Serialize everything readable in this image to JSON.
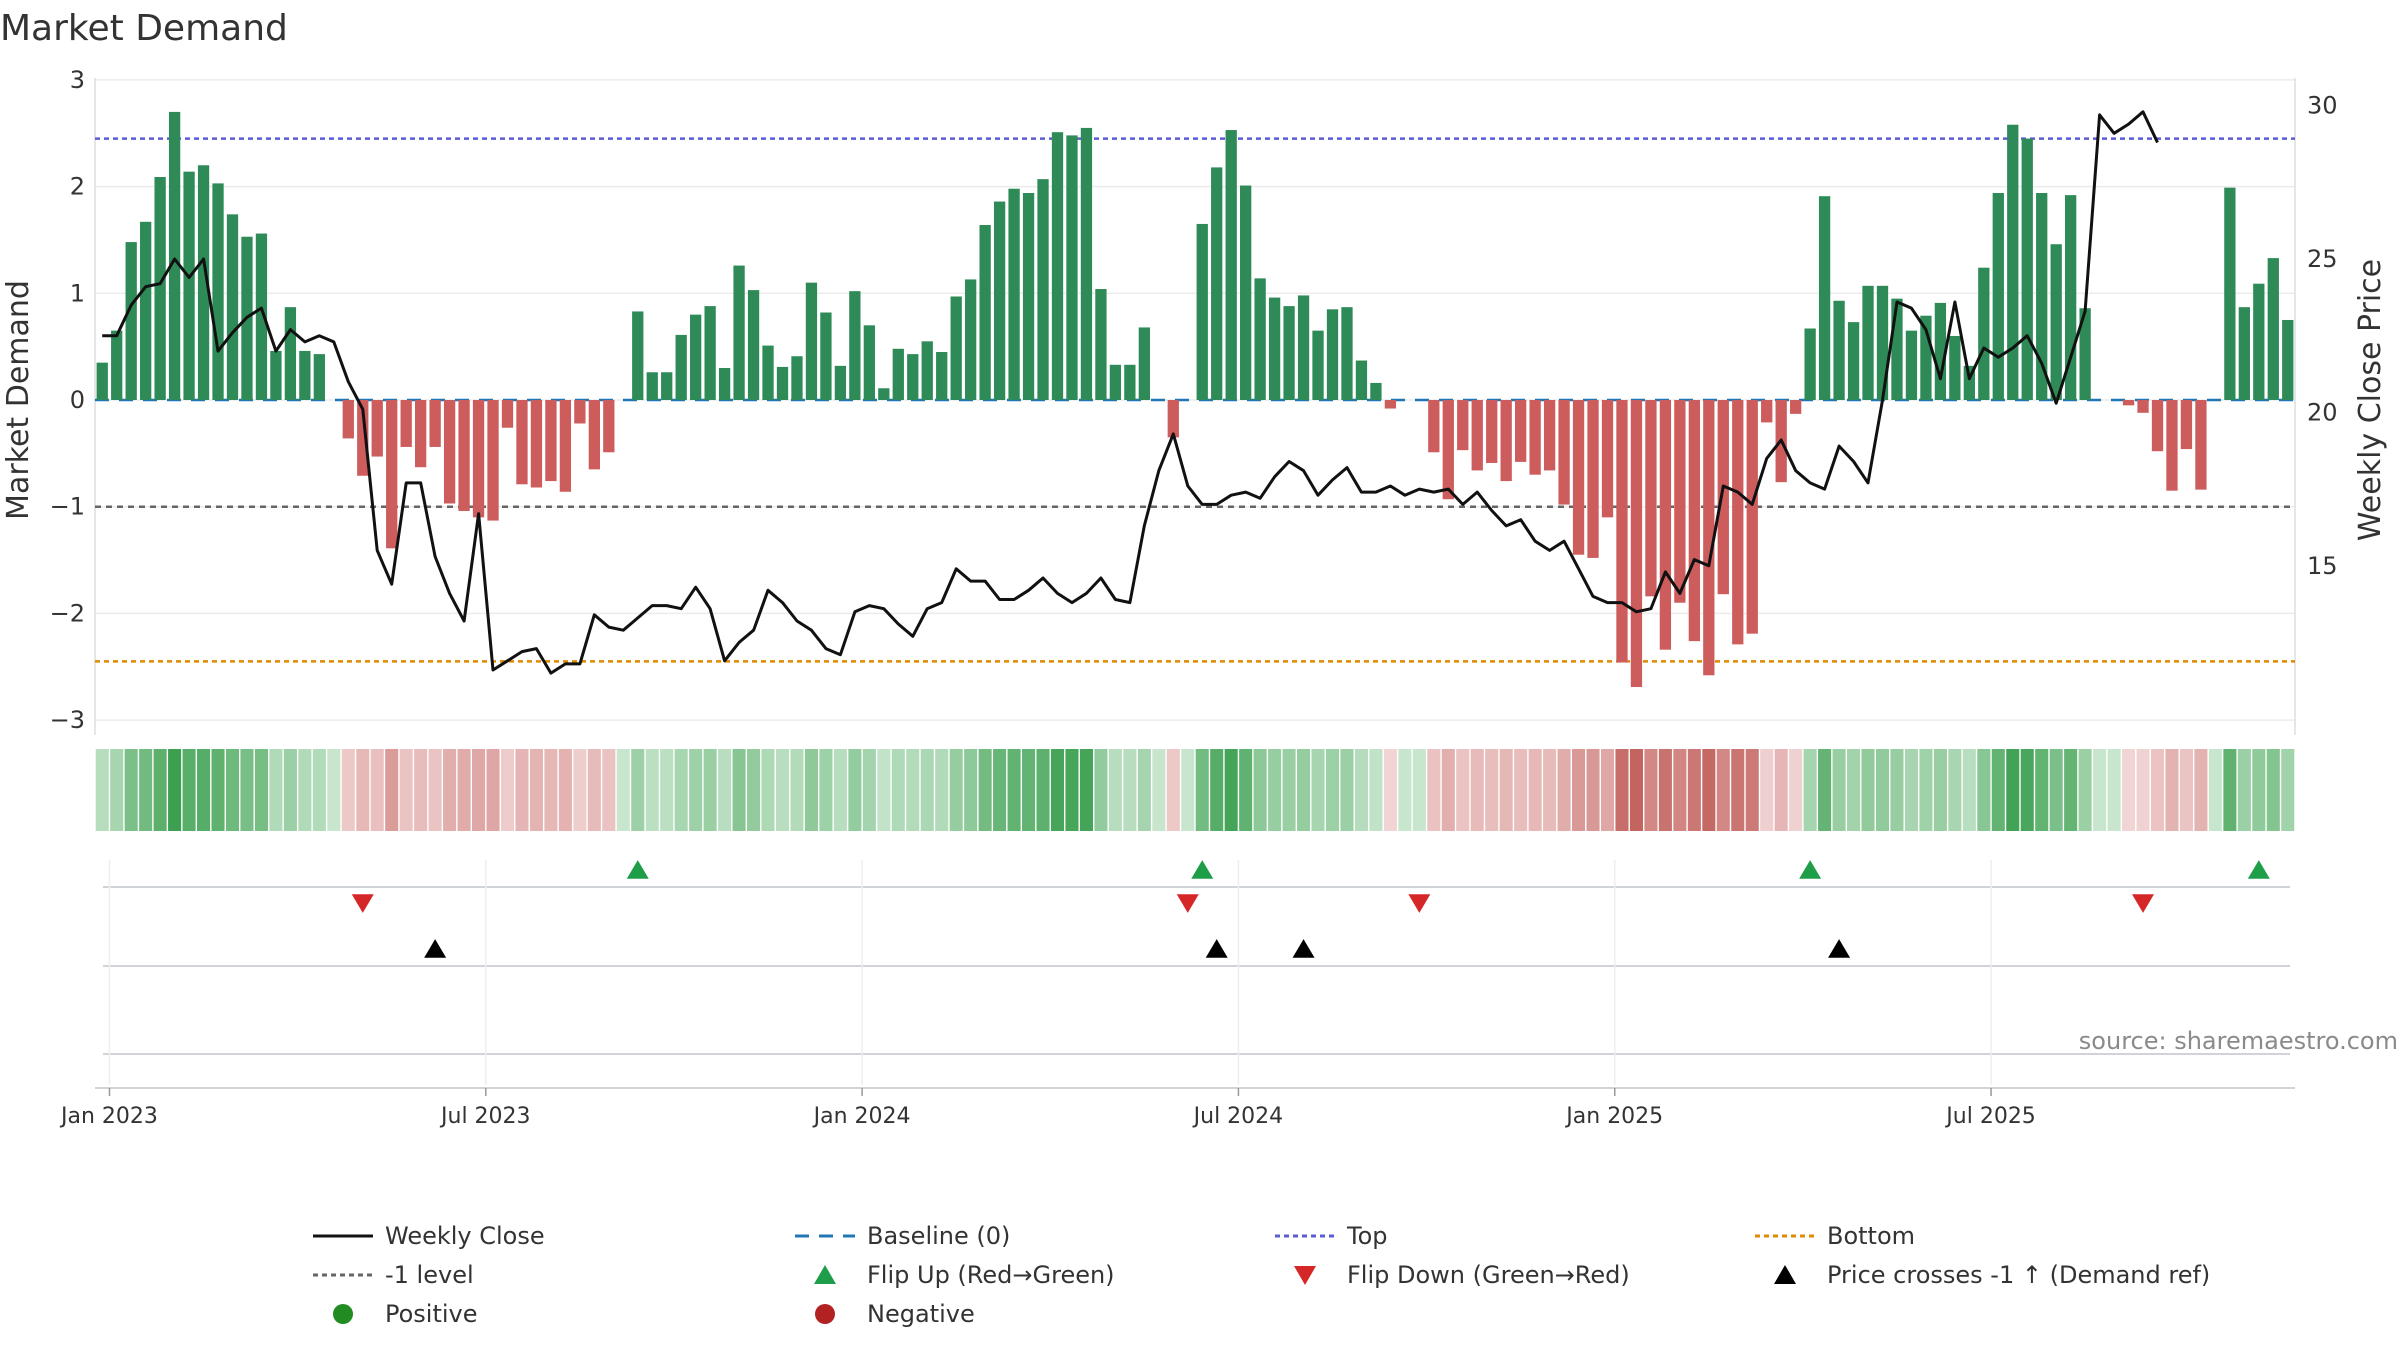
{
  "chart_data": {
    "type": "bar",
    "title": "Market Demand",
    "ylabel": "Market Demand",
    "y2label": "Weekly Close Price",
    "ylim": [
      -3.2,
      3.0
    ],
    "y2lim": [
      10,
      31
    ],
    "yticks": [
      {
        "value": 3,
        "label": "3"
      },
      {
        "value": 2,
        "label": "2"
      },
      {
        "value": 1,
        "label": "1"
      },
      {
        "value": 0,
        "label": "0"
      },
      {
        "value": -1,
        "label": "−1"
      },
      {
        "value": -2,
        "label": "−2"
      },
      {
        "value": -3,
        "label": "−3"
      }
    ],
    "y2ticks": [
      {
        "value": 30,
        "label": "30"
      },
      {
        "value": 25,
        "label": "25"
      },
      {
        "value": 20,
        "label": "20"
      },
      {
        "value": 15,
        "label": "15"
      }
    ],
    "x_start": "2022-12-26",
    "x_ticks": [
      {
        "week": 0.5,
        "label": "Jan 2023"
      },
      {
        "week": 26.5,
        "label": "Jul 2023"
      },
      {
        "week": 52.5,
        "label": "Jan 2024"
      },
      {
        "week": 78.5,
        "label": "Jul 2024"
      },
      {
        "week": 104.5,
        "label": "Jan 2025"
      },
      {
        "week": 130.5,
        "label": "Jul 2025"
      }
    ],
    "reference_lines": {
      "top": 2.45,
      "bottom": -2.45,
      "minus_one": -1,
      "baseline": 0
    },
    "demand": [
      0.35,
      0.65,
      1.48,
      1.67,
      2.09,
      2.7,
      2.14,
      2.2,
      2.03,
      1.74,
      1.53,
      1.56,
      0.46,
      0.87,
      0.46,
      0.43,
      0.0,
      -0.36,
      -0.71,
      -0.53,
      -1.39,
      -0.44,
      -0.63,
      -0.44,
      -0.97,
      -1.04,
      -1.1,
      -1.13,
      -0.26,
      -0.79,
      -0.82,
      -0.76,
      -0.86,
      -0.22,
      -0.65,
      -0.49,
      0.0,
      0.83,
      0.26,
      0.26,
      0.61,
      0.8,
      0.88,
      0.3,
      1.26,
      1.03,
      0.51,
      0.31,
      0.41,
      1.1,
      0.82,
      0.32,
      1.02,
      0.7,
      0.11,
      0.48,
      0.43,
      0.55,
      0.45,
      0.97,
      1.13,
      1.64,
      1.86,
      1.98,
      1.94,
      2.07,
      2.51,
      2.48,
      2.55,
      1.04,
      0.33,
      0.33,
      0.68,
      0.0,
      -0.35,
      0.0,
      1.65,
      2.18,
      2.53,
      2.01,
      1.14,
      0.96,
      0.88,
      0.98,
      0.65,
      0.85,
      0.87,
      0.37,
      0.16,
      -0.08,
      0.0,
      0.0,
      -0.49,
      -0.93,
      -0.47,
      -0.66,
      -0.59,
      -0.76,
      -0.58,
      -0.7,
      -0.66,
      -0.98,
      -1.45,
      -1.48,
      -1.1,
      -2.46,
      -2.69,
      -1.84,
      -2.34,
      -1.9,
      -2.26,
      -2.58,
      -1.82,
      -2.29,
      -2.19,
      -0.21,
      -0.77,
      -0.13,
      0.67,
      1.91,
      0.93,
      0.73,
      1.07,
      1.07,
      0.95,
      0.65,
      0.79,
      0.91,
      0.6,
      0.32,
      1.24,
      1.94,
      2.58,
      2.45,
      1.94,
      1.46,
      1.92,
      0.86,
      0.0,
      0.0,
      -0.05,
      -0.12,
      -0.48,
      -0.85,
      -0.46,
      -0.84,
      0.0,
      1.99,
      0.87,
      1.09,
      1.33,
      0.75
    ],
    "weekly_close": [
      22.5,
      22.5,
      23.5,
      24.1,
      24.2,
      25,
      24.4,
      25,
      22,
      22.6,
      23.1,
      23.4,
      22,
      22.7,
      22.3,
      22.5,
      22.3,
      21,
      20.1,
      15.5,
      14.4,
      17.7,
      17.7,
      15.3,
      14.1,
      13.2,
      16.7,
      11.6,
      11.9,
      12.2,
      12.3,
      11.5,
      11.8,
      11.8,
      13.4,
      13.0,
      12.9,
      13.3,
      13.7,
      13.7,
      13.6,
      14.3,
      13.6,
      11.9,
      12.5,
      12.9,
      14.2,
      13.8,
      13.2,
      12.9,
      12.3,
      12.1,
      13.5,
      13.7,
      13.6,
      13.1,
      12.7,
      13.6,
      13.8,
      14.9,
      14.5,
      14.5,
      13.9,
      13.9,
      14.2,
      14.6,
      14.1,
      13.8,
      14.1,
      14.6,
      13.9,
      13.8,
      16.3,
      18.1,
      19.3,
      17.6,
      17.0,
      17.0,
      17.3,
      17.4,
      17.2,
      17.9,
      18.4,
      18.1,
      17.3,
      17.8,
      18.2,
      17.4,
      17.4,
      17.6,
      17.3,
      17.5,
      17.4,
      17.5,
      17.0,
      17.4,
      16.8,
      16.3,
      16.5,
      15.8,
      15.5,
      15.8,
      14.9,
      14.0,
      13.8,
      13.8,
      13.5,
      13.6,
      14.8,
      14.1,
      15.2,
      15.0,
      17.6,
      17.4,
      17.0,
      18.5,
      19.1,
      18.1,
      17.7,
      17.5,
      18.9,
      18.4,
      17.7,
      20.4,
      23.6,
      23.4,
      22.7,
      21.1,
      23.6,
      21.1,
      22.1,
      21.8,
      22.1,
      22.5,
      21.6,
      20.3,
      21.8,
      23.3,
      29.7,
      29.1,
      29.4,
      29.8,
      28.8
    ],
    "flip_up_weeks": [
      37,
      76,
      118,
      149
    ],
    "flip_down_weeks": [
      18,
      75,
      91,
      141
    ],
    "price_cross_weeks": [
      23,
      77,
      83,
      120
    ],
    "source": "source: sharemaestro.com",
    "legend": {
      "items": [
        {
          "key": "weekly_close",
          "label": "Weekly Close"
        },
        {
          "key": "baseline",
          "label": "Baseline (0)"
        },
        {
          "key": "top",
          "label": "Top"
        },
        {
          "key": "bottom",
          "label": "Bottom"
        },
        {
          "key": "minus_one",
          "label": "-1 level"
        },
        {
          "key": "flip_up",
          "label": "Flip Up (Red→Green)"
        },
        {
          "key": "flip_down",
          "label": "Flip Down (Green→Red)"
        },
        {
          "key": "price_cross",
          "label": "Price crosses -1 ↑ (Demand ref)"
        },
        {
          "key": "positive",
          "label": "Positive"
        },
        {
          "key": "negative",
          "label": "Negative"
        }
      ],
      "placement": "bottom"
    },
    "colors": {
      "positive_bar": "#2e8b57",
      "negative_bar": "#cd5c5c",
      "line": "#111111",
      "baseline": "#1f77b4",
      "top": "#5b5bd6",
      "bottom": "#e08a00",
      "minus_one": "#666666",
      "flip_up": "#1f9e4a",
      "flip_down": "#d62728",
      "price_cross": "#000000",
      "positive_dot": "#228b22",
      "negative_dot": "#b22222"
    }
  }
}
